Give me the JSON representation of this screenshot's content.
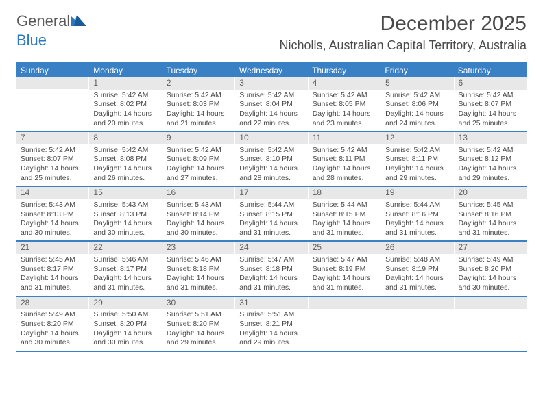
{
  "logo": {
    "part1": "General",
    "part2": "Blue"
  },
  "title": "December 2025",
  "location": "Nicholls, Australian Capital Territory, Australia",
  "day_names": [
    "Sunday",
    "Monday",
    "Tuesday",
    "Wednesday",
    "Thursday",
    "Friday",
    "Saturday"
  ],
  "colors": {
    "header_bg": "#3a80c4",
    "header_text": "#ffffff",
    "daynum_bg": "#e8e8e8",
    "text": "#4a4a4a",
    "border": "#3a80c4"
  },
  "weeks": [
    [
      {
        "day": "",
        "sunrise": "",
        "sunset": "",
        "daylight1": "",
        "daylight2": ""
      },
      {
        "day": "1",
        "sunrise": "Sunrise: 5:42 AM",
        "sunset": "Sunset: 8:02 PM",
        "daylight1": "Daylight: 14 hours",
        "daylight2": "and 20 minutes."
      },
      {
        "day": "2",
        "sunrise": "Sunrise: 5:42 AM",
        "sunset": "Sunset: 8:03 PM",
        "daylight1": "Daylight: 14 hours",
        "daylight2": "and 21 minutes."
      },
      {
        "day": "3",
        "sunrise": "Sunrise: 5:42 AM",
        "sunset": "Sunset: 8:04 PM",
        "daylight1": "Daylight: 14 hours",
        "daylight2": "and 22 minutes."
      },
      {
        "day": "4",
        "sunrise": "Sunrise: 5:42 AM",
        "sunset": "Sunset: 8:05 PM",
        "daylight1": "Daylight: 14 hours",
        "daylight2": "and 23 minutes."
      },
      {
        "day": "5",
        "sunrise": "Sunrise: 5:42 AM",
        "sunset": "Sunset: 8:06 PM",
        "daylight1": "Daylight: 14 hours",
        "daylight2": "and 24 minutes."
      },
      {
        "day": "6",
        "sunrise": "Sunrise: 5:42 AM",
        "sunset": "Sunset: 8:07 PM",
        "daylight1": "Daylight: 14 hours",
        "daylight2": "and 25 minutes."
      }
    ],
    [
      {
        "day": "7",
        "sunrise": "Sunrise: 5:42 AM",
        "sunset": "Sunset: 8:07 PM",
        "daylight1": "Daylight: 14 hours",
        "daylight2": "and 25 minutes."
      },
      {
        "day": "8",
        "sunrise": "Sunrise: 5:42 AM",
        "sunset": "Sunset: 8:08 PM",
        "daylight1": "Daylight: 14 hours",
        "daylight2": "and 26 minutes."
      },
      {
        "day": "9",
        "sunrise": "Sunrise: 5:42 AM",
        "sunset": "Sunset: 8:09 PM",
        "daylight1": "Daylight: 14 hours",
        "daylight2": "and 27 minutes."
      },
      {
        "day": "10",
        "sunrise": "Sunrise: 5:42 AM",
        "sunset": "Sunset: 8:10 PM",
        "daylight1": "Daylight: 14 hours",
        "daylight2": "and 28 minutes."
      },
      {
        "day": "11",
        "sunrise": "Sunrise: 5:42 AM",
        "sunset": "Sunset: 8:11 PM",
        "daylight1": "Daylight: 14 hours",
        "daylight2": "and 28 minutes."
      },
      {
        "day": "12",
        "sunrise": "Sunrise: 5:42 AM",
        "sunset": "Sunset: 8:11 PM",
        "daylight1": "Daylight: 14 hours",
        "daylight2": "and 29 minutes."
      },
      {
        "day": "13",
        "sunrise": "Sunrise: 5:42 AM",
        "sunset": "Sunset: 8:12 PM",
        "daylight1": "Daylight: 14 hours",
        "daylight2": "and 29 minutes."
      }
    ],
    [
      {
        "day": "14",
        "sunrise": "Sunrise: 5:43 AM",
        "sunset": "Sunset: 8:13 PM",
        "daylight1": "Daylight: 14 hours",
        "daylight2": "and 30 minutes."
      },
      {
        "day": "15",
        "sunrise": "Sunrise: 5:43 AM",
        "sunset": "Sunset: 8:13 PM",
        "daylight1": "Daylight: 14 hours",
        "daylight2": "and 30 minutes."
      },
      {
        "day": "16",
        "sunrise": "Sunrise: 5:43 AM",
        "sunset": "Sunset: 8:14 PM",
        "daylight1": "Daylight: 14 hours",
        "daylight2": "and 30 minutes."
      },
      {
        "day": "17",
        "sunrise": "Sunrise: 5:44 AM",
        "sunset": "Sunset: 8:15 PM",
        "daylight1": "Daylight: 14 hours",
        "daylight2": "and 31 minutes."
      },
      {
        "day": "18",
        "sunrise": "Sunrise: 5:44 AM",
        "sunset": "Sunset: 8:15 PM",
        "daylight1": "Daylight: 14 hours",
        "daylight2": "and 31 minutes."
      },
      {
        "day": "19",
        "sunrise": "Sunrise: 5:44 AM",
        "sunset": "Sunset: 8:16 PM",
        "daylight1": "Daylight: 14 hours",
        "daylight2": "and 31 minutes."
      },
      {
        "day": "20",
        "sunrise": "Sunrise: 5:45 AM",
        "sunset": "Sunset: 8:16 PM",
        "daylight1": "Daylight: 14 hours",
        "daylight2": "and 31 minutes."
      }
    ],
    [
      {
        "day": "21",
        "sunrise": "Sunrise: 5:45 AM",
        "sunset": "Sunset: 8:17 PM",
        "daylight1": "Daylight: 14 hours",
        "daylight2": "and 31 minutes."
      },
      {
        "day": "22",
        "sunrise": "Sunrise: 5:46 AM",
        "sunset": "Sunset: 8:17 PM",
        "daylight1": "Daylight: 14 hours",
        "daylight2": "and 31 minutes."
      },
      {
        "day": "23",
        "sunrise": "Sunrise: 5:46 AM",
        "sunset": "Sunset: 8:18 PM",
        "daylight1": "Daylight: 14 hours",
        "daylight2": "and 31 minutes."
      },
      {
        "day": "24",
        "sunrise": "Sunrise: 5:47 AM",
        "sunset": "Sunset: 8:18 PM",
        "daylight1": "Daylight: 14 hours",
        "daylight2": "and 31 minutes."
      },
      {
        "day": "25",
        "sunrise": "Sunrise: 5:47 AM",
        "sunset": "Sunset: 8:19 PM",
        "daylight1": "Daylight: 14 hours",
        "daylight2": "and 31 minutes."
      },
      {
        "day": "26",
        "sunrise": "Sunrise: 5:48 AM",
        "sunset": "Sunset: 8:19 PM",
        "daylight1": "Daylight: 14 hours",
        "daylight2": "and 31 minutes."
      },
      {
        "day": "27",
        "sunrise": "Sunrise: 5:49 AM",
        "sunset": "Sunset: 8:20 PM",
        "daylight1": "Daylight: 14 hours",
        "daylight2": "and 30 minutes."
      }
    ],
    [
      {
        "day": "28",
        "sunrise": "Sunrise: 5:49 AM",
        "sunset": "Sunset: 8:20 PM",
        "daylight1": "Daylight: 14 hours",
        "daylight2": "and 30 minutes."
      },
      {
        "day": "29",
        "sunrise": "Sunrise: 5:50 AM",
        "sunset": "Sunset: 8:20 PM",
        "daylight1": "Daylight: 14 hours",
        "daylight2": "and 30 minutes."
      },
      {
        "day": "30",
        "sunrise": "Sunrise: 5:51 AM",
        "sunset": "Sunset: 8:20 PM",
        "daylight1": "Daylight: 14 hours",
        "daylight2": "and 29 minutes."
      },
      {
        "day": "31",
        "sunrise": "Sunrise: 5:51 AM",
        "sunset": "Sunset: 8:21 PM",
        "daylight1": "Daylight: 14 hours",
        "daylight2": "and 29 minutes."
      },
      {
        "day": "",
        "sunrise": "",
        "sunset": "",
        "daylight1": "",
        "daylight2": ""
      },
      {
        "day": "",
        "sunrise": "",
        "sunset": "",
        "daylight1": "",
        "daylight2": ""
      },
      {
        "day": "",
        "sunrise": "",
        "sunset": "",
        "daylight1": "",
        "daylight2": ""
      }
    ]
  ]
}
